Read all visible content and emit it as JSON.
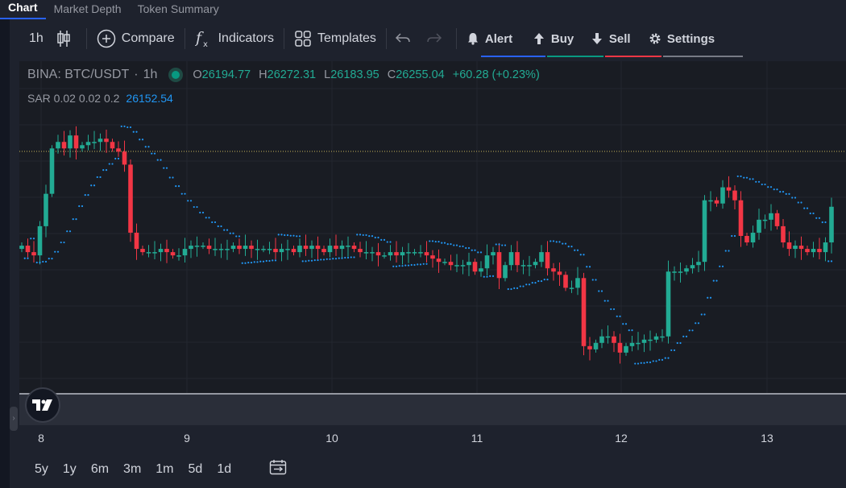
{
  "tabs": [
    {
      "label": "Chart",
      "active": true
    },
    {
      "label": "Market Depth"
    },
    {
      "label": "Token Summary"
    }
  ],
  "toolbar": {
    "interval": "1h",
    "compare": "Compare",
    "indicators": "Indicators",
    "templates": "Templates",
    "alert": "Alert",
    "buy": "Buy",
    "sell": "Sell",
    "settings": "Settings",
    "colors": {
      "alert": "#2962ff",
      "buy": "#089981",
      "sell": "#f23645",
      "settings": "#787b86"
    }
  },
  "legend": {
    "symbol": "BINA: BTC/USDT",
    "interval": "1h",
    "open_label": "O",
    "open": "26194.77",
    "high_label": "H",
    "high": "26272.31",
    "low_label": "L",
    "low": "26183.95",
    "close_label": "C",
    "close": "26255.04",
    "change": "+60.28 (+0.23%)"
  },
  "indicator": {
    "label": "SAR 0.02 0.02 0.2",
    "value": "26152.54"
  },
  "time_axis": {
    "ticks": [
      "8",
      "9",
      "10",
      "11",
      "12",
      "13"
    ]
  },
  "ranges": [
    "5y",
    "1y",
    "6m",
    "3m",
    "1m",
    "5d",
    "1d"
  ],
  "chart_data": {
    "type": "candlestick",
    "interval": "1h",
    "x_ticks": [
      "8",
      "9",
      "10",
      "11",
      "12",
      "13"
    ],
    "up_color": "#22ab94",
    "down_color": "#f23645",
    "sar_color": "#2196f3",
    "grid": true,
    "notes": "hourly OHLC candles, day 8 00:00 through day 13 ~17:00; values in relative price levels",
    "closes": [
      58,
      56,
      55,
      64,
      74,
      88,
      90,
      88,
      92,
      88,
      89,
      90,
      90,
      91,
      90,
      88,
      87,
      83,
      62,
      57,
      56,
      56,
      56,
      57,
      56,
      55,
      55,
      57,
      58,
      58,
      58,
      57,
      57,
      57,
      57,
      58,
      57,
      58,
      57,
      57,
      57,
      57,
      56,
      57,
      57,
      56,
      58,
      57,
      58,
      57,
      56,
      58,
      57,
      58,
      58,
      57,
      56,
      56,
      56,
      55,
      55,
      56,
      55,
      56,
      56,
      56,
      56,
      55,
      54,
      53,
      53,
      52,
      52,
      52,
      53,
      50,
      51,
      55,
      56,
      48,
      52,
      56,
      52,
      52,
      52,
      53,
      56,
      51,
      50,
      49,
      45,
      45,
      48,
      27,
      26,
      28,
      30,
      30,
      28,
      25,
      27,
      28,
      28,
      29,
      29,
      30,
      30,
      50,
      50,
      50,
      51,
      52,
      53,
      72,
      72,
      71,
      76,
      75,
      72,
      61,
      59,
      62,
      66,
      66,
      68,
      64,
      59,
      57,
      58,
      57,
      56,
      57,
      56,
      59,
      70
    ]
  }
}
